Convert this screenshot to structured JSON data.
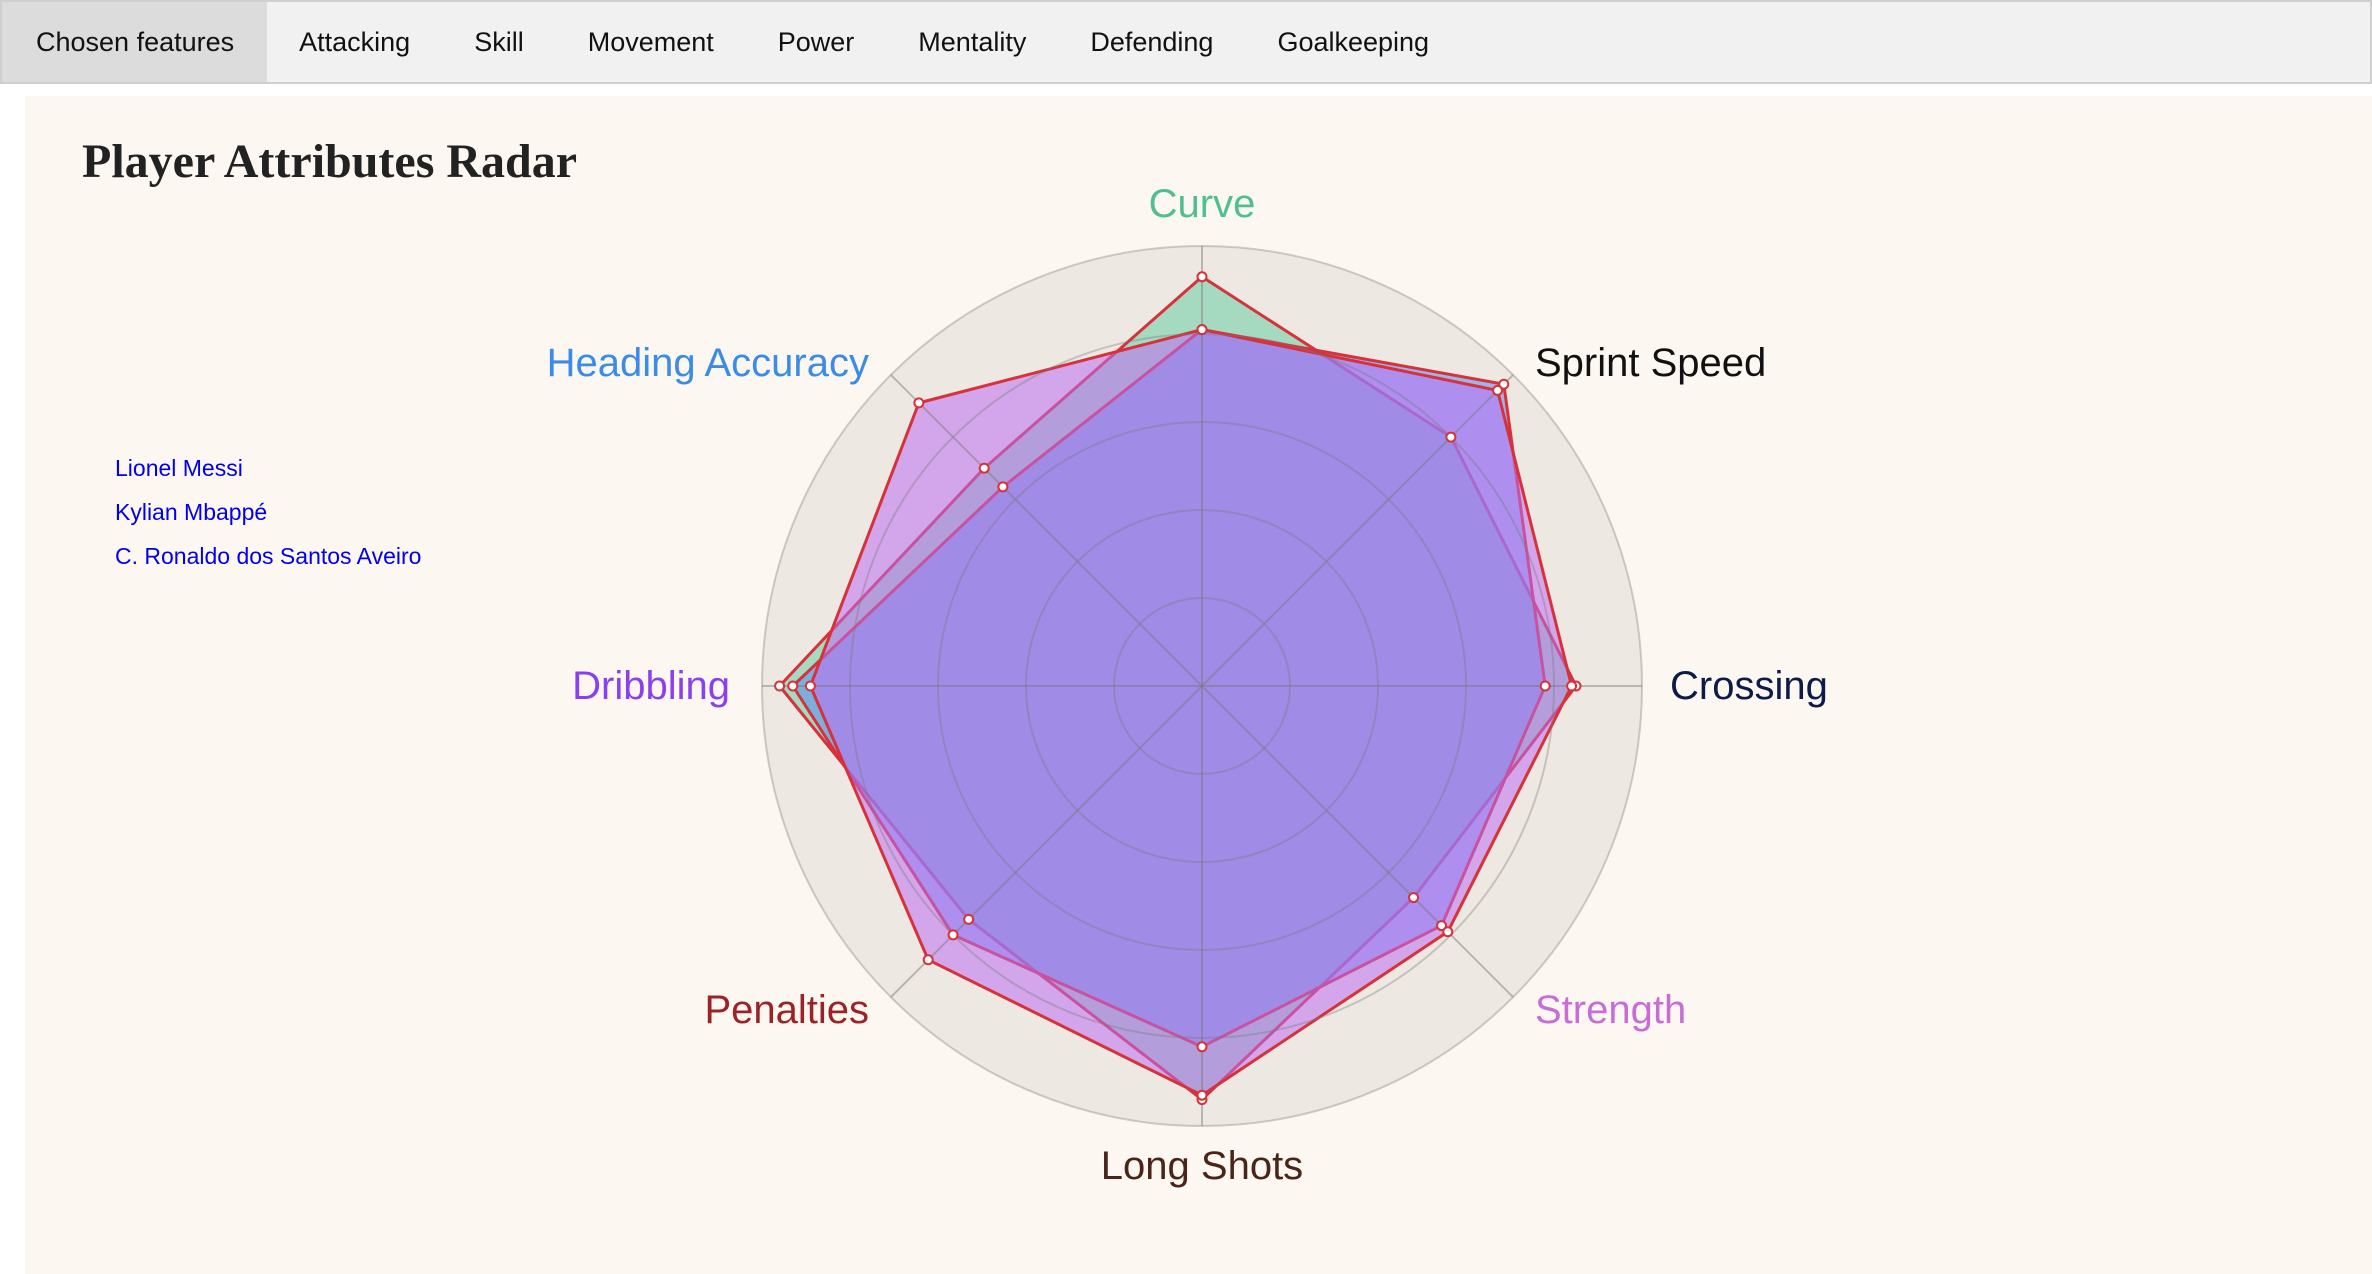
{
  "tabs": [
    {
      "label": "Chosen features",
      "active": true
    },
    {
      "label": "Attacking"
    },
    {
      "label": "Skill"
    },
    {
      "label": "Movement"
    },
    {
      "label": "Power"
    },
    {
      "label": "Mentality"
    },
    {
      "label": "Defending"
    },
    {
      "label": "Goalkeeping"
    }
  ],
  "legend": [
    "Lionel Messi",
    "Kylian Mbappé",
    "C. Ronaldo dos Santos Aveiro"
  ],
  "chart_data": {
    "type": "radar",
    "title": "Player Attributes Radar",
    "axes": [
      {
        "name": "Curve",
        "color": "#4fc08d"
      },
      {
        "name": "Sprint Speed",
        "color": "#111111"
      },
      {
        "name": "Crossing",
        "color": "#0d1a4a"
      },
      {
        "name": "Strength",
        "color": "#c86dd7"
      },
      {
        "name": "Long Shots",
        "color": "#4a2418"
      },
      {
        "name": "Penalties",
        "color": "#9b2226"
      },
      {
        "name": "Dribbling",
        "color": "#8a3ff0"
      },
      {
        "name": "Heading Accuracy",
        "color": "#3b8be8"
      }
    ],
    "rmax": 100,
    "rings": 5,
    "series": [
      {
        "name": "Lionel Messi",
        "values": [
          93,
          80,
          85,
          68,
          94,
          75,
          96,
          70
        ],
        "fill": "rgba(80,200,150,0.45)",
        "stroke": "#d6323c"
      },
      {
        "name": "Kylian Mbappé",
        "values": [
          81,
          97,
          78,
          77,
          82,
          80,
          93,
          64
        ],
        "fill": "rgba(90,140,240,0.55)",
        "stroke": "#d6323c"
      },
      {
        "name": "C. Ronaldo dos Santos Aveiro",
        "values": [
          81,
          95,
          84,
          79,
          93,
          88,
          89,
          91
        ],
        "fill": "rgba(190,110,240,0.55)",
        "stroke": "#d6323c"
      }
    ]
  }
}
